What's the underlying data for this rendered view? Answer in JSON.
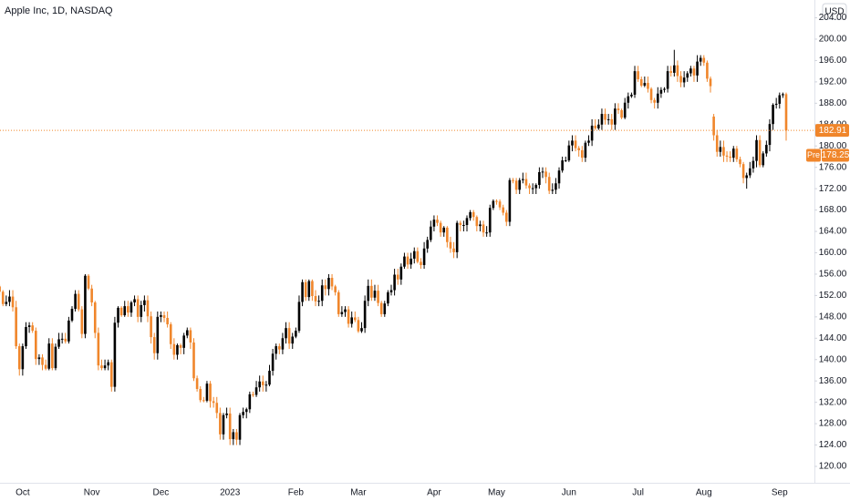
{
  "chart_data": {
    "type": "candlestick",
    "title": "Apple Inc, 1D, NASDAQ",
    "currency": "USD",
    "up_color": "#000000",
    "down_color": "#f0862b",
    "categories": [
      null,
      null,
      null,
      null,
      null,
      null,
      null,
      null,
      "Oct",
      null,
      null,
      null,
      null,
      null,
      null,
      null,
      null,
      null,
      null,
      null,
      null,
      null,
      null,
      null,
      null,
      null,
      null,
      null,
      null,
      "Nov",
      null,
      null,
      null,
      null,
      null,
      null,
      null,
      null,
      null,
      null,
      null,
      null,
      null,
      null,
      null,
      null,
      null,
      null,
      null,
      null,
      "Dec",
      null,
      null,
      null,
      null,
      null,
      null,
      null,
      null,
      null,
      null,
      null,
      null,
      null,
      null,
      null,
      null,
      null,
      null,
      null,
      null,
      "2023",
      null,
      null,
      null,
      null,
      null,
      null,
      null,
      null,
      null,
      null,
      null,
      null,
      null,
      null,
      null,
      null,
      null,
      null,
      null,
      "Feb",
      null,
      null,
      null,
      null,
      null,
      null,
      null,
      null,
      null,
      null,
      null,
      null,
      null,
      null,
      null,
      null,
      null,
      null,
      "Mar",
      null,
      null,
      null,
      null,
      null,
      null,
      null,
      null,
      null,
      null,
      null,
      null,
      null,
      null,
      null,
      null,
      null,
      null,
      null,
      null,
      null,
      null,
      "Apr",
      null,
      null,
      null,
      null,
      null,
      null,
      null,
      null,
      null,
      null,
      null,
      null,
      null,
      null,
      null,
      null,
      null,
      null,
      "May",
      null,
      null,
      null,
      null,
      null,
      null,
      null,
      null,
      null,
      null,
      null,
      null,
      null,
      null,
      null,
      null,
      null,
      null,
      null,
      null,
      null,
      "Jun",
      null,
      null,
      null,
      null,
      null,
      null,
      null,
      null,
      null,
      null,
      null,
      null,
      null,
      null,
      null,
      null,
      null,
      null,
      null,
      null,
      "Jul",
      null,
      null,
      null,
      null,
      null,
      null,
      null,
      null,
      null,
      null,
      null,
      null,
      null,
      null,
      null,
      null,
      null,
      null,
      null,
      "Aug",
      null,
      null,
      null,
      null,
      null,
      null,
      null,
      null,
      null,
      null,
      null,
      null,
      null,
      null,
      null,
      null,
      null,
      null,
      null,
      null,
      null,
      null,
      "Sep",
      null,
      null
    ],
    "open": [
      154.5,
      153.7,
      152.7,
      150.4,
      150.8,
      151.8,
      149.8,
      142.5,
      138.2,
      142.5,
      146.1,
      146.4,
      145.4,
      140.1,
      140.4,
      139.0,
      138.3,
      143.0,
      138.4,
      142.4,
      143.8,
      143.9,
      143.4,
      147.3,
      149.5,
      152.3,
      149.4,
      144.8,
      155.7,
      153.3,
      150.7,
      145.0,
      138.9,
      138.4,
      138.9,
      139.5,
      134.9,
      146.9,
      149.7,
      148.3,
      150.0,
      148.8,
      150.7,
      151.3,
      148.0,
      150.2,
      151.1,
      148.1,
      144.2,
      141.2,
      148.0,
      148.3,
      147.8,
      146.6,
      142.9,
      140.9,
      142.7,
      142.2,
      144.5,
      145.5,
      143.2,
      136.5,
      134.5,
      132.4,
      132.3,
      135.5,
      132.2,
      131.9,
      130.0,
      126.0,
      129.6,
      129.9,
      125.1,
      126.4,
      125.0,
      129.6,
      130.2,
      130.7,
      133.5,
      133.4,
      134.8,
      135.9,
      135.2,
      135.3,
      137.9,
      141.1,
      142.5,
      141.9,
      144.0,
      145.9,
      143.0,
      144.3,
      145.4,
      150.8,
      154.5,
      151.7,
      154.7,
      151.9,
      150.9,
      151.0,
      153.9,
      153.2,
      155.3,
      153.7,
      152.6,
      148.5,
      148.9,
      149.4,
      146.7,
      147.9,
      147.4,
      145.3,
      145.9,
      151.0,
      153.8,
      151.6,
      152.9,
      150.6,
      148.5,
      150.5,
      152.6,
      153.0,
      155.9,
      155.0,
      157.4,
      159.3,
      157.8,
      158.9,
      160.3,
      158.3,
      157.7,
      160.8,
      162.4,
      164.9,
      166.2,
      165.6,
      163.8,
      164.7,
      162.0,
      160.8,
      160.1,
      165.6,
      165.2,
      165.2,
      166.5,
      167.6,
      166.7,
      165.0,
      165.3,
      163.8,
      163.8,
      168.4,
      169.7,
      169.6,
      168.5,
      167.5,
      165.8,
      173.6,
      173.5,
      171.8,
      173.6,
      173.8,
      172.6,
      172.1,
      172.1,
      172.7,
      175.1,
      175.2,
      174.2,
      171.6,
      171.8,
      173.0,
      175.4,
      177.3,
      177.3,
      180.1,
      181.0,
      179.6,
      179.2,
      177.8,
      180.6,
      181.0,
      183.8,
      183.3,
      184.0,
      186.0,
      184.9,
      185.0,
      184.0,
      187.0,
      186.7,
      185.3,
      188.1,
      189.3,
      189.6,
      194.0,
      192.5,
      191.3,
      191.8,
      190.7,
      188.6,
      188.1,
      189.8,
      190.5,
      190.7,
      194.0,
      193.7,
      195.1,
      193.1,
      191.9,
      192.8,
      193.6,
      194.5,
      193.2,
      195.8,
      196.5,
      195.6,
      192.6,
      185.5,
      182.0,
      178.9,
      179.8,
      178.2,
      178.0,
      177.8,
      179.5,
      177.5,
      176.6,
      174.0,
      174.5,
      175.8,
      177.2,
      181.1,
      176.4,
      178.6,
      180.2,
      184.1,
      187.7,
      187.9,
      189.5,
      189.7
    ],
    "high": [
      155,
      154,
      153,
      152,
      153,
      153,
      151,
      143,
      143,
      147,
      147,
      147,
      146,
      141,
      141,
      140,
      144,
      144,
      143,
      145,
      145,
      145,
      148,
      150,
      153,
      153,
      150,
      156,
      156,
      154,
      151,
      146,
      140,
      140,
      140,
      140,
      148,
      150,
      150,
      151,
      151,
      151,
      152,
      152,
      151,
      152,
      152,
      149,
      145,
      149,
      149,
      149,
      149,
      147,
      144,
      143,
      143,
      145,
      146,
      146,
      144,
      137,
      135,
      133,
      136,
      136,
      133,
      133,
      131,
      130,
      131,
      131,
      127,
      127,
      130,
      131,
      131,
      134,
      134,
      136,
      137,
      137,
      136,
      139,
      142,
      143,
      143,
      145,
      147,
      147,
      145,
      146,
      152,
      155,
      155,
      155,
      155,
      153,
      152,
      155,
      155,
      156,
      156,
      154,
      153,
      150,
      150,
      150,
      149,
      149,
      148,
      147,
      152,
      155,
      155,
      154,
      154,
      151,
      151,
      153,
      154,
      157,
      157,
      158,
      160,
      160,
      160,
      161,
      161,
      159,
      162,
      163,
      166,
      167,
      167,
      166,
      165,
      165,
      163,
      162,
      166,
      166,
      166,
      167,
      168,
      168,
      167,
      166,
      166,
      165,
      169,
      170,
      170,
      170,
      169,
      168,
      174,
      174,
      174,
      174,
      175,
      175,
      173,
      173,
      173,
      176,
      176,
      176,
      175,
      173,
      174,
      176,
      178,
      178,
      181,
      182,
      182,
      180,
      180,
      181,
      182,
      185,
      185,
      185,
      187,
      187,
      186,
      186,
      188,
      188,
      187,
      189,
      190,
      190,
      195,
      195,
      193,
      193,
      193,
      191,
      189,
      191,
      191,
      191,
      195,
      195,
      198,
      196,
      194,
      194,
      194,
      195,
      195,
      197,
      197,
      197,
      196,
      193,
      186,
      183,
      181,
      181,
      179,
      179,
      180,
      180,
      178,
      177,
      175,
      177,
      178,
      182,
      182,
      179,
      181,
      185,
      188,
      189,
      190,
      190,
      190
    ],
    "low": [
      153,
      152,
      150,
      150,
      150,
      149,
      142,
      137,
      137,
      142,
      145,
      145,
      139,
      139,
      138,
      138,
      138,
      138,
      138,
      142,
      143,
      143,
      143,
      147,
      149,
      149,
      144,
      144,
      153,
      150,
      144,
      138,
      138,
      138,
      138,
      134,
      134,
      146,
      148,
      148,
      148,
      148,
      150,
      147,
      147,
      149,
      147,
      143,
      140,
      140,
      147,
      147,
      146,
      142,
      140,
      140,
      141,
      141,
      144,
      142,
      136,
      134,
      132,
      132,
      132,
      131,
      131,
      129,
      125,
      125,
      129,
      124,
      124,
      124,
      124,
      129,
      129,
      130,
      133,
      133,
      134,
      134,
      134,
      135,
      137,
      140,
      141,
      141,
      143,
      142,
      142,
      144,
      145,
      150,
      151,
      151,
      151,
      150,
      150,
      150,
      152,
      152,
      153,
      152,
      148,
      148,
      148,
      146,
      146,
      147,
      145,
      145,
      145,
      150,
      151,
      151,
      150,
      148,
      148,
      150,
      152,
      152,
      154,
      154,
      157,
      157,
      157,
      158,
      158,
      157,
      157,
      160,
      162,
      164,
      165,
      163,
      163,
      161,
      160,
      159,
      159,
      164,
      164,
      164,
      166,
      166,
      164,
      164,
      163,
      163,
      163,
      168,
      169,
      168,
      167,
      165,
      165,
      173,
      171,
      171,
      173,
      172,
      171,
      171,
      171,
      172,
      174,
      173,
      171,
      171,
      171,
      172,
      175,
      177,
      177,
      179,
      179,
      178,
      177,
      177,
      180,
      180,
      183,
      183,
      183,
      184,
      184,
      183,
      183,
      186,
      185,
      185,
      187,
      189,
      189,
      192,
      191,
      191,
      190,
      188,
      187,
      187,
      189,
      190,
      190,
      193,
      193,
      192,
      191,
      191,
      192,
      193,
      192,
      192,
      195,
      195,
      192,
      190,
      181,
      178,
      178,
      177,
      177,
      177,
      177,
      177,
      176,
      173,
      172,
      174,
      175,
      176,
      176,
      176,
      178,
      179,
      183,
      187,
      187,
      189,
      181
    ],
    "close": [
      153.7,
      152.7,
      150.4,
      150.8,
      151.8,
      149.8,
      142.5,
      138.2,
      142.5,
      146.1,
      146.4,
      145.4,
      140.1,
      140.4,
      139.0,
      138.3,
      143.0,
      138.4,
      142.4,
      143.8,
      143.9,
      143.4,
      147.3,
      149.5,
      152.3,
      149.4,
      144.8,
      155.7,
      153.3,
      150.7,
      145.0,
      138.9,
      138.4,
      138.9,
      139.5,
      134.9,
      146.9,
      149.7,
      148.3,
      150.0,
      148.8,
      150.7,
      151.3,
      148.0,
      150.2,
      151.1,
      148.1,
      144.2,
      141.2,
      148.0,
      148.3,
      147.8,
      146.6,
      142.9,
      140.9,
      142.7,
      142.2,
      144.5,
      145.5,
      143.2,
      136.5,
      134.5,
      132.4,
      132.3,
      135.5,
      132.2,
      131.9,
      130.0,
      126.0,
      129.6,
      129.9,
      125.1,
      126.4,
      125.0,
      129.6,
      130.2,
      130.7,
      133.5,
      133.4,
      134.8,
      135.9,
      135.2,
      135.3,
      137.9,
      141.1,
      142.5,
      141.9,
      144.0,
      145.9,
      143.0,
      144.3,
      145.4,
      150.8,
      154.5,
      151.7,
      154.7,
      151.9,
      150.9,
      151.0,
      153.9,
      153.2,
      155.3,
      153.7,
      152.6,
      148.5,
      148.9,
      149.4,
      146.7,
      147.9,
      147.4,
      145.3,
      145.9,
      151.0,
      153.8,
      151.6,
      152.9,
      150.6,
      148.5,
      150.5,
      152.6,
      153.0,
      155.9,
      155.0,
      157.4,
      159.3,
      157.8,
      158.9,
      160.3,
      158.3,
      157.7,
      160.8,
      162.4,
      164.9,
      166.2,
      165.6,
      163.8,
      164.7,
      162.0,
      160.8,
      160.1,
      165.6,
      165.2,
      165.2,
      166.5,
      167.6,
      166.7,
      165.0,
      165.3,
      163.8,
      163.8,
      168.4,
      169.7,
      169.6,
      168.5,
      167.5,
      165.8,
      173.6,
      173.5,
      171.8,
      173.6,
      173.8,
      172.6,
      172.1,
      172.1,
      172.7,
      175.1,
      175.2,
      174.2,
      171.6,
      171.8,
      173.0,
      175.4,
      177.3,
      177.3,
      180.1,
      181.0,
      179.6,
      179.2,
      177.8,
      180.6,
      181.0,
      183.8,
      183.3,
      184.0,
      186.0,
      184.9,
      185.0,
      184.0,
      187.0,
      186.7,
      185.3,
      188.1,
      189.3,
      189.6,
      194.0,
      192.5,
      191.3,
      191.8,
      190.7,
      188.6,
      188.1,
      189.8,
      190.5,
      190.7,
      194.0,
      193.7,
      195.1,
      193.1,
      191.9,
      192.8,
      193.6,
      194.5,
      193.2,
      195.8,
      196.5,
      195.6,
      192.6,
      191.2,
      182.0,
      178.9,
      179.8,
      178.2,
      178.0,
      177.8,
      179.5,
      177.5,
      176.6,
      174.0,
      174.5,
      175.8,
      177.2,
      181.1,
      176.4,
      178.6,
      180.2,
      184.1,
      187.7,
      187.9,
      189.5,
      189.7,
      182.9
    ],
    "ylim": [
      116.93,
      207.33
    ],
    "yticks": [
      {
        "value": 120,
        "label": "120.00"
      },
      {
        "value": 124,
        "label": "124.00"
      },
      {
        "value": 128,
        "label": "128.00"
      },
      {
        "value": 132,
        "label": "132.00"
      },
      {
        "value": 136,
        "label": "136.00"
      },
      {
        "value": 140,
        "label": "140.00"
      },
      {
        "value": 144,
        "label": "144.00"
      },
      {
        "value": 148,
        "label": "148.00"
      },
      {
        "value": 152,
        "label": "152.00"
      },
      {
        "value": 156,
        "label": "156.00"
      },
      {
        "value": 160,
        "label": "160.00"
      },
      {
        "value": 164,
        "label": "164.00"
      },
      {
        "value": 168,
        "label": "168.00"
      },
      {
        "value": 172,
        "label": "172.00"
      },
      {
        "value": 176,
        "label": "176.00"
      },
      {
        "value": 180,
        "label": "180.00"
      },
      {
        "value": 184,
        "label": "184.00"
      },
      {
        "value": 188,
        "label": "188.00"
      },
      {
        "value": 192,
        "label": "192.00"
      },
      {
        "value": 196,
        "label": "196.00"
      },
      {
        "value": 200,
        "label": "200.00"
      },
      {
        "value": 204,
        "label": "204.00"
      }
    ],
    "last_price": 182.91,
    "pre_market": {
      "label": "Pre",
      "value": 178.25
    },
    "grid": false
  }
}
